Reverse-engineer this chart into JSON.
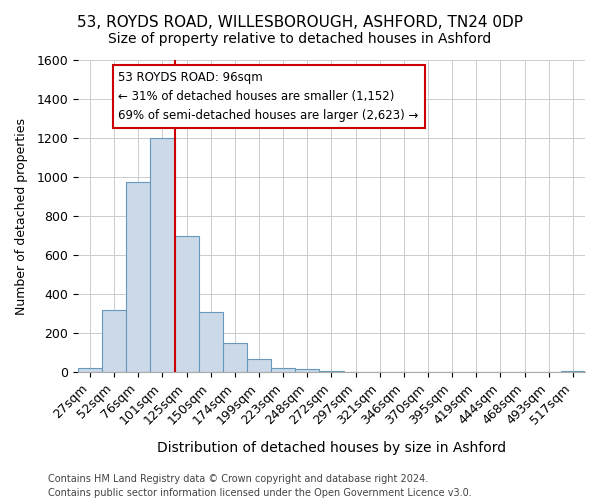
{
  "title1": "53, ROYDS ROAD, WILLESBOROUGH, ASHFORD, TN24 0DP",
  "title2": "Size of property relative to detached houses in Ashford",
  "xlabel": "Distribution of detached houses by size in Ashford",
  "ylabel": "Number of detached properties",
  "categories": [
    "27sqm",
    "52sqm",
    "76sqm",
    "101sqm",
    "125sqm",
    "150sqm",
    "174sqm",
    "199sqm",
    "223sqm",
    "248sqm",
    "272sqm",
    "297sqm",
    "321sqm",
    "346sqm",
    "370sqm",
    "395sqm",
    "419sqm",
    "444sqm",
    "468sqm",
    "493sqm",
    "517sqm"
  ],
  "values": [
    25,
    320,
    975,
    1200,
    700,
    310,
    150,
    70,
    25,
    20,
    10,
    5,
    5,
    0,
    0,
    0,
    0,
    0,
    0,
    0,
    10
  ],
  "bar_color": "#ccd9e8",
  "bar_edge_color": "#6699bb",
  "vline_x": 3.5,
  "vline_color": "#cc0000",
  "annotation_title": "53 ROYDS ROAD: 96sqm",
  "annotation_line1": "← 31% of detached houses are smaller (1,152)",
  "annotation_line2": "69% of semi-detached houses are larger (2,623) →",
  "annotation_box_color": "white",
  "annotation_box_edge": "#cc0000",
  "ylim": [
    0,
    1600
  ],
  "yticks": [
    0,
    200,
    400,
    600,
    800,
    1000,
    1200,
    1400,
    1600
  ],
  "footer1": "Contains HM Land Registry data © Crown copyright and database right 2024.",
  "footer2": "Contains public sector information licensed under the Open Government Licence v3.0.",
  "bg_color": "#ffffff",
  "grid_color": "#cccccc",
  "title1_fontsize": 11,
  "title2_fontsize": 10,
  "xlabel_fontsize": 10,
  "ylabel_fontsize": 9,
  "tick_fontsize": 9,
  "annot_fontsize": 8.5,
  "footer_fontsize": 7
}
